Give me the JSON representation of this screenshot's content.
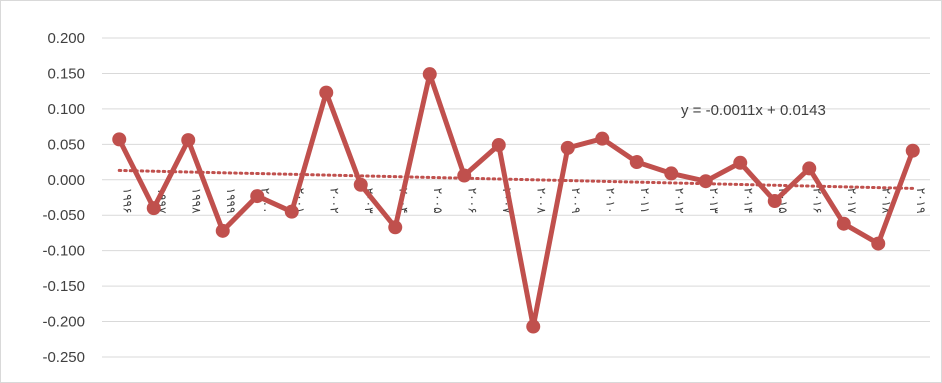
{
  "chart_data": {
    "type": "line",
    "title": "",
    "xlabel": "",
    "ylabel": "",
    "categories": [
      "۱۹۹۶",
      "۱۹۹۷",
      "۱۹۹۸",
      "۱۹۹۹",
      "۲۰۰۰",
      "۲۰۰۱",
      "۲۰۰۲",
      "۲۰۰۳",
      "۲۰۰۴",
      "۲۰۰۵",
      "۲۰۰۶",
      "۲۰۰۷",
      "۲۰۰۸",
      "۲۰۰۹",
      "۲۰۱۰",
      "۲۰۱۱",
      "۲۰۱۲",
      "۲۰۱۳",
      "۲۰۱۴",
      "۲۰۱۵",
      "۲۰۱۶",
      "۲۰۱۷",
      "۲۰۱۸",
      "۲۰۱۹"
    ],
    "series": [
      {
        "values": [
          0.057,
          -0.04,
          0.056,
          -0.072,
          -0.023,
          -0.045,
          0.123,
          -0.007,
          -0.067,
          0.149,
          0.006,
          0.049,
          -0.207,
          0.045,
          0.058,
          0.025,
          0.009,
          -0.002,
          0.024,
          -0.03,
          0.016,
          -0.062,
          -0.09,
          0.041
        ],
        "color": "#c0504d"
      }
    ],
    "trendline": {
      "type": "linear",
      "slope": -0.0011,
      "intercept": 0.0143,
      "equation_label": "y = -0.0011x + 0.0143",
      "color": "#c0504d",
      "style": "dotted"
    },
    "ylim": [
      -0.25,
      0.2
    ],
    "yticks": [
      "0.200",
      "0.150",
      "0.100",
      "0.050",
      "0.000",
      "-0.050",
      "-0.100",
      "-0.150",
      "-0.200",
      "-0.250"
    ],
    "grid": true,
    "legend": "none"
  }
}
